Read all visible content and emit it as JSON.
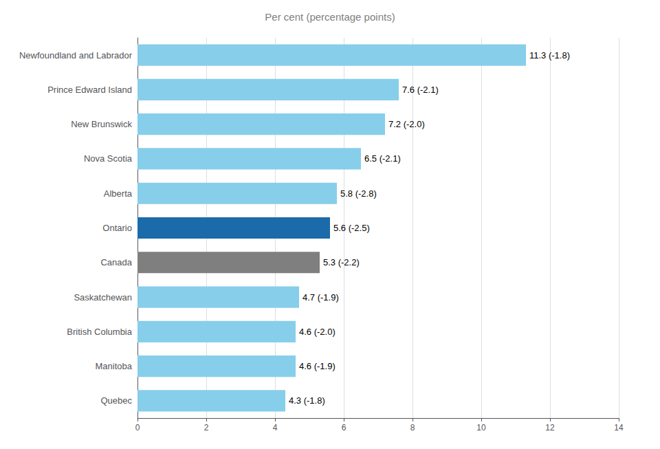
{
  "chart_data": {
    "type": "bar",
    "orientation": "horizontal",
    "title": "Per cent (percentage points)",
    "categories": [
      "Newfoundland and Labrador",
      "Prince Edward Island",
      "New Brunswick",
      "Nova Scotia",
      "Alberta",
      "Ontario",
      "Canada",
      "Saskatchewan",
      "British Columbia",
      "Manitoba",
      "Quebec"
    ],
    "values": [
      11.3,
      7.6,
      7.2,
      6.5,
      5.8,
      5.6,
      5.3,
      4.7,
      4.6,
      4.6,
      4.3
    ],
    "value_labels": [
      "11.3 (-1.8)",
      "7.6 (-2.1)",
      "7.2 (-2.0)",
      "6.5 (-2.1)",
      "5.8 (-2.8)",
      "5.6 (-2.5)",
      "5.3 (-2.2)",
      "4.7 (-1.9)",
      "4.6 (-2.0)",
      "4.6 (-1.9)",
      "4.3 (-1.8)"
    ],
    "data_labels": true,
    "colors": [
      "#87CEEB",
      "#87CEEB",
      "#87CEEB",
      "#87CEEB",
      "#87CEEB",
      "#1B6BAA",
      "#7F7F7F",
      "#87CEEB",
      "#87CEEB",
      "#87CEEB",
      "#87CEEB"
    ],
    "xlim": [
      0,
      14
    ],
    "xticks": [
      0,
      2,
      4,
      6,
      8,
      10,
      12,
      14
    ],
    "grid": true
  }
}
